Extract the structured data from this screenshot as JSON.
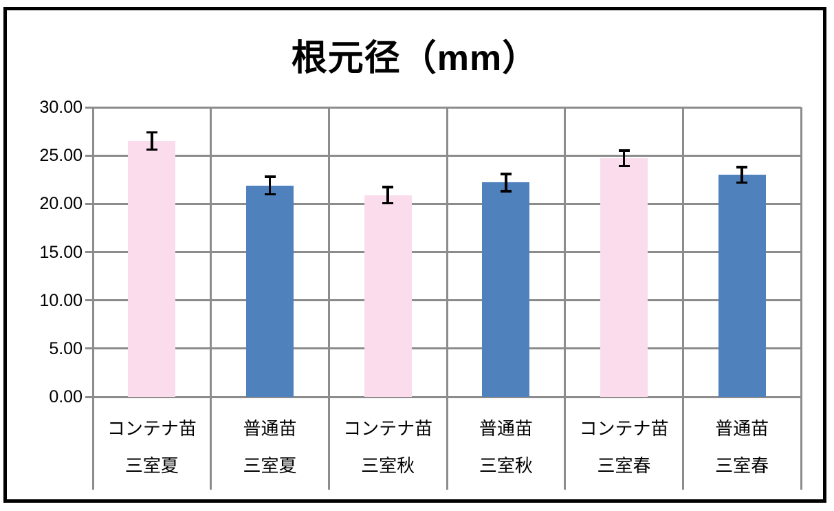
{
  "chart_data": {
    "type": "bar",
    "title": "根元径（mm）",
    "xlabel": "",
    "ylabel": "",
    "ylim": [
      0,
      30
    ],
    "ytick_step": 5,
    "ytick_labels": [
      "30.00",
      "25.00",
      "20.00",
      "15.00",
      "10.00",
      "5.00",
      "0.00"
    ],
    "grid": true,
    "legend_position": "none",
    "categories": [
      {
        "line1": "コンテナ苗",
        "line2": "三室夏"
      },
      {
        "line1": "普通苗",
        "line2": "三室夏"
      },
      {
        "line1": "コンテナ苗",
        "line2": "三室秋"
      },
      {
        "line1": "普通苗",
        "line2": "三室秋"
      },
      {
        "line1": "コンテナ苗",
        "line2": "三室春"
      },
      {
        "line1": "普通苗",
        "line2": "三室春"
      }
    ],
    "values": [
      26.5,
      21.9,
      20.9,
      22.2,
      24.7,
      23.0
    ],
    "error_bars_plus_minus": [
      0.9,
      0.9,
      0.85,
      0.9,
      0.8,
      0.8
    ],
    "bar_colors": [
      "#FBDCEC",
      "#4F81BD",
      "#FBDCEC",
      "#4F81BD",
      "#FBDCEC",
      "#4F81BD"
    ]
  },
  "colors": {
    "pink_bar": "#FBDCEC",
    "blue_bar": "#4F81BD",
    "gridline": "#8C8C8C",
    "error_bar": "#000000",
    "frame_border": "#000000",
    "background": "#FFFFFF",
    "text": "#000000"
  }
}
